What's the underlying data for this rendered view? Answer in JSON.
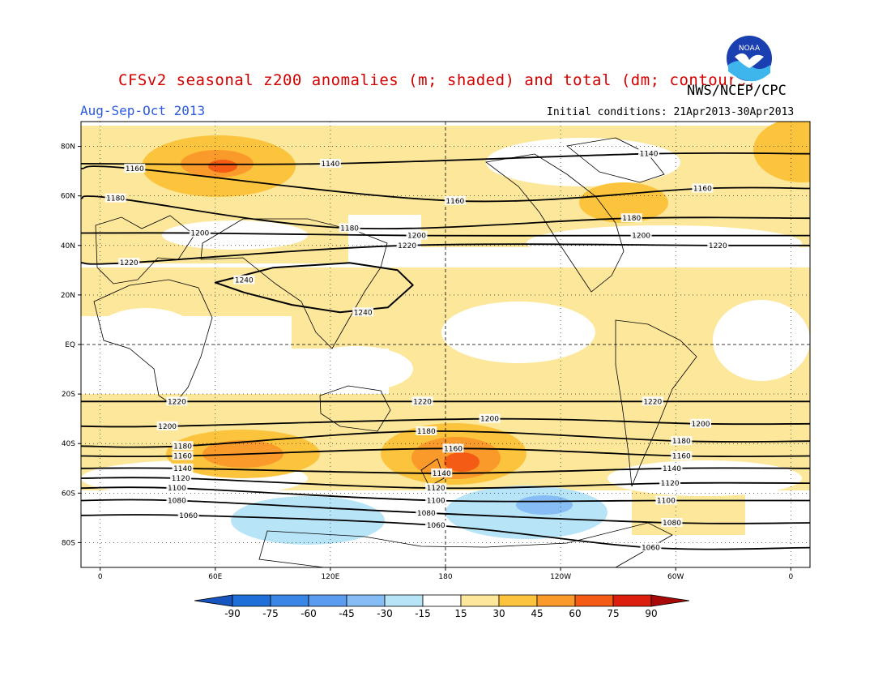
{
  "title": "CFSv2 seasonal z200 anomalies (m; shaded) and total (dm; contours)",
  "organization": "NWS/NCEP/CPC",
  "logo_text": "NOAA",
  "season": "Aug-Sep-Oct 2013",
  "initial_conditions": "Initial conditions: 21Apr2013-30Apr2013",
  "map": {
    "lat_ticks": [
      {
        "value": 80,
        "label": "80N"
      },
      {
        "value": 60,
        "label": "60N"
      },
      {
        "value": 40,
        "label": "40N"
      },
      {
        "value": 20,
        "label": "20N"
      },
      {
        "value": 0,
        "label": "EQ"
      },
      {
        "value": -20,
        "label": "20S"
      },
      {
        "value": -40,
        "label": "40S"
      },
      {
        "value": -60,
        "label": "60S"
      },
      {
        "value": -80,
        "label": "80S"
      }
    ],
    "lon_ticks": [
      {
        "value": 0,
        "label": "0"
      },
      {
        "value": 60,
        "label": "60E"
      },
      {
        "value": 120,
        "label": "120E"
      },
      {
        "value": 180,
        "label": "180"
      },
      {
        "value": 240,
        "label": "120W"
      },
      {
        "value": 300,
        "label": "60W"
      },
      {
        "value": 360,
        "label": "0"
      }
    ],
    "contours": [
      {
        "level": "1240",
        "labels": [
          {
            "lon": 75,
            "lat": 26
          },
          {
            "lon": 137,
            "lat": 13
          }
        ]
      },
      {
        "level": "1220",
        "labels": [
          {
            "lon": 15,
            "lat": 33
          },
          {
            "lon": 160,
            "lat": 40
          },
          {
            "lon": 322,
            "lat": 40
          },
          {
            "lon": 40,
            "lat": -23
          },
          {
            "lon": 168,
            "lat": -23
          },
          {
            "lon": 288,
            "lat": -23
          }
        ]
      },
      {
        "level": "1200",
        "labels": [
          {
            "lon": 52,
            "lat": 45
          },
          {
            "lon": 165,
            "lat": 44
          },
          {
            "lon": 282,
            "lat": 44
          },
          {
            "lon": 35,
            "lat": -33
          },
          {
            "lon": 203,
            "lat": -30
          },
          {
            "lon": 313,
            "lat": -32
          }
        ]
      },
      {
        "level": "1180",
        "labels": [
          {
            "lon": 8,
            "lat": 59
          },
          {
            "lon": 130,
            "lat": 47
          },
          {
            "lon": 277,
            "lat": 51
          },
          {
            "lon": 43,
            "lat": -41
          },
          {
            "lon": 170,
            "lat": -35
          },
          {
            "lon": 303,
            "lat": -39
          }
        ]
      },
      {
        "level": "1160",
        "labels": [
          {
            "lon": 18,
            "lat": 71
          },
          {
            "lon": 185,
            "lat": 58
          },
          {
            "lon": 314,
            "lat": 63
          },
          {
            "lon": 43,
            "lat": -45
          },
          {
            "lon": 184,
            "lat": -42
          },
          {
            "lon": 303,
            "lat": -45
          }
        ]
      },
      {
        "level": "1140",
        "labels": [
          {
            "lon": 120,
            "lat": 73
          },
          {
            "lon": 286,
            "lat": 77
          },
          {
            "lon": 43,
            "lat": -50
          },
          {
            "lon": 178,
            "lat": -52
          },
          {
            "lon": 298,
            "lat": -50
          }
        ]
      },
      {
        "level": "1120",
        "labels": [
          {
            "lon": 42,
            "lat": -54
          },
          {
            "lon": 175,
            "lat": -58
          },
          {
            "lon": 297,
            "lat": -56
          }
        ]
      },
      {
        "level": "1100",
        "labels": [
          {
            "lon": 40,
            "lat": -58
          },
          {
            "lon": 175,
            "lat": -63
          },
          {
            "lon": 295,
            "lat": -63
          }
        ]
      },
      {
        "level": "1080",
        "labels": [
          {
            "lon": 40,
            "lat": -63
          },
          {
            "lon": 170,
            "lat": -68
          },
          {
            "lon": 298,
            "lat": -72
          }
        ]
      },
      {
        "level": "1060",
        "labels": [
          {
            "lon": 46,
            "lat": -69
          },
          {
            "lon": 175,
            "lat": -73
          },
          {
            "lon": 287,
            "lat": -82
          }
        ]
      }
    ]
  },
  "colorbar": {
    "labels": [
      "-90",
      "-75",
      "-60",
      "-45",
      "-30",
      "-15",
      "15",
      "30",
      "45",
      "60",
      "75",
      "90"
    ],
    "colors": [
      "#1e6fd8",
      "#3a86e6",
      "#5a9cf0",
      "#86bdf5",
      "#b8e4f7",
      "#ffffff",
      "#fde79b",
      "#fcc43d",
      "#f99a2b",
      "#f45c16",
      "#dc1e0c"
    ],
    "low_end_color": "#1654c0",
    "high_end_color": "#a80808"
  }
}
